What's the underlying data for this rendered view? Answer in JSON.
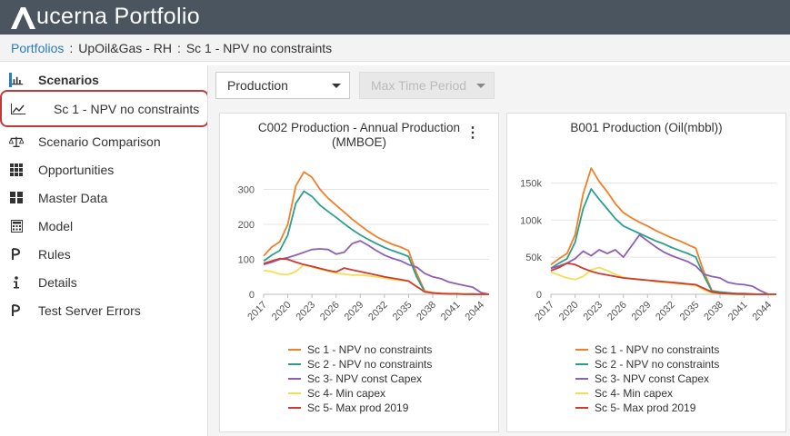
{
  "app": {
    "title": "ucerna Portfolio",
    "logo": "aucerna-a-logo"
  },
  "breadcrumb": {
    "root": "Portfolios",
    "portfolio": "UpOil&Gas - RH",
    "scenario": "Sc 1 - NPV no constraints",
    "separator": ":"
  },
  "sidebar": {
    "header": {
      "label": "Scenarios",
      "icon": "bar-chart-icon"
    },
    "selected": {
      "label": "Sc 1 - NPV no constraints",
      "icon": "line-chart-icon"
    },
    "items": [
      {
        "label": "Scenario Comparison",
        "icon": "balance-scale-icon"
      },
      {
        "label": "Opportunities",
        "icon": "grid-icon"
      },
      {
        "label": "Master Data",
        "icon": "table-grid-icon"
      },
      {
        "label": "Model",
        "icon": "calculator-icon"
      },
      {
        "label": "Rules",
        "icon": "rule-icon"
      },
      {
        "label": "Details",
        "icon": "info-icon"
      },
      {
        "label": "Test Server Errors",
        "icon": "rule-icon"
      }
    ]
  },
  "toolbar": {
    "view_select": "Production",
    "period_select": {
      "placeholder": "Max Time Period",
      "disabled": true
    }
  },
  "colors": {
    "sc1": "#f07f28",
    "sc2": "#2e9e8c",
    "sc3": "#8e5fb0",
    "sc4": "#f3de58",
    "sc5": "#cf3a30",
    "accent": "#2a7bbf",
    "highlight": "#c0393b"
  },
  "chart_data": [
    {
      "type": "line",
      "title": "C002 Production - Annual Production (MMBOE)",
      "x_ticks": [
        "2017",
        "2020",
        "2023",
        "2026",
        "2029",
        "2032",
        "2035",
        "2038",
        "2041",
        "2044"
      ],
      "y_ticks": [
        "0",
        "100",
        "200",
        "300"
      ],
      "xlim": [
        2017,
        2045
      ],
      "ylim": [
        0,
        330
      ],
      "grid": true,
      "legend_position": "bottom",
      "x": [
        2017,
        2018,
        2019,
        2020,
        2021,
        2022,
        2023,
        2024,
        2025,
        2026,
        2027,
        2028,
        2029,
        2030,
        2031,
        2032,
        2033,
        2034,
        2035,
        2036,
        2037,
        2038,
        2039,
        2040,
        2041,
        2042,
        2043,
        2044,
        2045
      ],
      "series": [
        {
          "name": "Sc 1 - NPV no constraints",
          "color": "#f07f28",
          "values": [
            110,
            135,
            150,
            200,
            310,
            350,
            335,
            300,
            275,
            255,
            235,
            215,
            197,
            180,
            165,
            153,
            143,
            135,
            125,
            60,
            10,
            5,
            3,
            2,
            2,
            1,
            1,
            0,
            0
          ]
        },
        {
          "name": "Sc 2 - NPV no constraints",
          "color": "#2e9e8c",
          "values": [
            95,
            112,
            125,
            170,
            260,
            295,
            280,
            255,
            237,
            220,
            202,
            185,
            170,
            157,
            145,
            134,
            125,
            117,
            108,
            50,
            8,
            4,
            3,
            2,
            1,
            1,
            1,
            0,
            0
          ]
        },
        {
          "name": "Sc 3- NPV const Capex",
          "color": "#8e5fb0",
          "values": [
            85,
            92,
            100,
            105,
            112,
            120,
            128,
            130,
            128,
            115,
            120,
            145,
            153,
            140,
            125,
            112,
            103,
            96,
            85,
            78,
            60,
            50,
            45,
            35,
            30,
            25,
            20,
            5,
            0
          ]
        },
        {
          "name": "Sc 4- Min capex",
          "color": "#f3de58",
          "values": [
            68,
            65,
            58,
            56,
            65,
            85,
            78,
            72,
            66,
            60,
            58,
            55,
            55,
            53,
            50,
            46,
            42,
            40,
            38,
            22,
            8,
            5,
            3,
            2,
            1,
            1,
            0,
            0,
            0
          ]
        },
        {
          "name": "Sc 5- Max prod 2019",
          "color": "#cf3a30",
          "values": [
            88,
            95,
            102,
            100,
            92,
            85,
            80,
            74,
            68,
            64,
            75,
            70,
            65,
            60,
            55,
            50,
            46,
            42,
            38,
            22,
            7,
            4,
            2,
            1,
            1,
            0,
            0,
            0,
            0
          ]
        }
      ]
    },
    {
      "type": "line",
      "title": "B001 Production (Oil(mbbl))",
      "x_ticks": [
        "2017",
        "2020",
        "2023",
        "2026",
        "2029",
        "2032",
        "2035",
        "2038",
        "2041",
        "2044"
      ],
      "y_ticks": [
        "0",
        "50k",
        "100k",
        "150k"
      ],
      "xlim": [
        2017,
        2045
      ],
      "ylim": [
        0,
        175000
      ],
      "grid": true,
      "legend_position": "bottom",
      "x": [
        2017,
        2018,
        2019,
        2020,
        2021,
        2022,
        2023,
        2024,
        2025,
        2026,
        2027,
        2028,
        2029,
        2030,
        2031,
        2032,
        2033,
        2034,
        2035,
        2036,
        2037,
        2038,
        2039,
        2040,
        2041,
        2042,
        2043,
        2044,
        2045
      ],
      "series": [
        {
          "name": "Sc 1 - NPV no constraints",
          "color": "#f07f28",
          "values": [
            40000,
            48000,
            55000,
            80000,
            135000,
            170000,
            152000,
            138000,
            122000,
            110000,
            103000,
            97000,
            92000,
            86000,
            81000,
            76000,
            72000,
            67000,
            62000,
            30000,
            5000,
            3000,
            2000,
            1000,
            1000,
            500,
            0,
            0,
            0
          ]
        },
        {
          "name": "Sc 2 - NPV no constraints",
          "color": "#2e9e8c",
          "values": [
            35000,
            42000,
            48000,
            70000,
            115000,
            142000,
            128000,
            115000,
            102000,
            92000,
            87000,
            82000,
            77000,
            72000,
            68000,
            63000,
            59000,
            55000,
            50000,
            25000,
            4000,
            3000,
            2000,
            1000,
            800,
            500,
            0,
            0,
            0
          ]
        },
        {
          "name": "Sc 3- NPV const Capex",
          "color": "#8e5fb0",
          "values": [
            35000,
            38000,
            42000,
            48000,
            58000,
            52000,
            60000,
            55000,
            60000,
            50000,
            65000,
            80000,
            72000,
            64000,
            57000,
            52000,
            48000,
            44000,
            38000,
            27000,
            24000,
            22000,
            16000,
            14000,
            13000,
            11000,
            5000,
            0,
            0
          ]
        },
        {
          "name": "Sc 4- Min capex",
          "color": "#f3de58",
          "values": [
            30000,
            26000,
            22000,
            20000,
            24000,
            33000,
            36000,
            32000,
            27000,
            23000,
            21000,
            20000,
            19000,
            17000,
            16000,
            15000,
            14000,
            13000,
            12000,
            6000,
            2000,
            1000,
            500,
            0,
            0,
            0,
            0,
            0,
            0
          ]
        },
        {
          "name": "Sc 5- Max prod 2019",
          "color": "#cf3a30",
          "values": [
            32000,
            36000,
            42000,
            40000,
            35000,
            31000,
            28000,
            26000,
            24000,
            22000,
            21000,
            20000,
            19000,
            18000,
            17000,
            16000,
            15000,
            14000,
            13000,
            8000,
            3000,
            1500,
            800,
            400,
            200,
            0,
            0,
            0,
            0
          ]
        }
      ]
    }
  ]
}
